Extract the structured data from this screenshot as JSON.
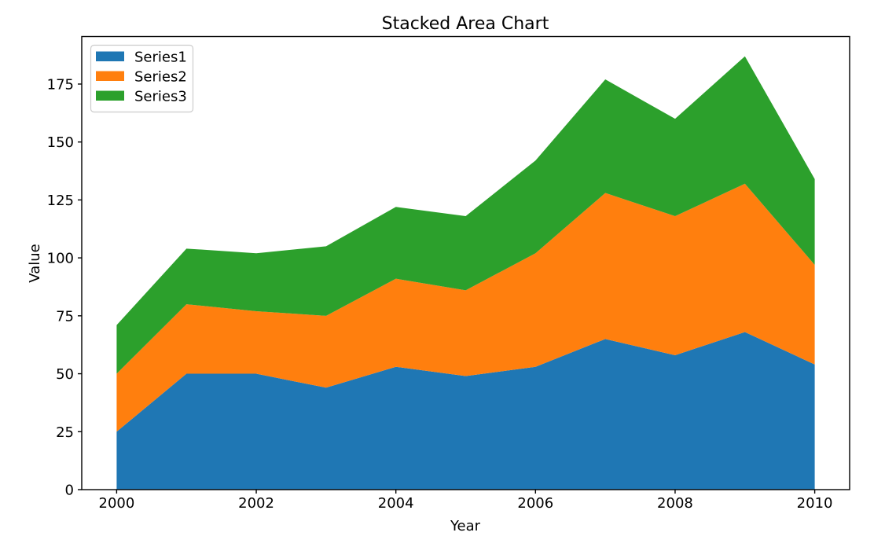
{
  "chart_data": {
    "type": "area",
    "stacked": true,
    "title": "Stacked Area Chart",
    "xlabel": "Year",
    "ylabel": "Value",
    "x": [
      2000,
      2001,
      2002,
      2003,
      2004,
      2005,
      2006,
      2007,
      2008,
      2009,
      2010
    ],
    "series": [
      {
        "name": "Series1",
        "color": "#1f77b4",
        "values": [
          25,
          50,
          50,
          44,
          53,
          49,
          53,
          65,
          58,
          68,
          54
        ]
      },
      {
        "name": "Series2",
        "color": "#ff7f0e",
        "values": [
          25,
          30,
          27,
          31,
          38,
          37,
          49,
          63,
          60,
          64,
          43
        ]
      },
      {
        "name": "Series3",
        "color": "#2ca02c",
        "values": [
          21,
          24,
          25,
          30,
          31,
          32,
          40,
          49,
          42,
          55,
          37
        ]
      }
    ],
    "stacked_totals": {
      "series1_top": [
        25,
        50,
        50,
        44,
        53,
        49,
        53,
        65,
        58,
        68,
        54
      ],
      "series2_top": [
        50,
        80,
        77,
        75,
        91,
        86,
        102,
        128,
        118,
        132,
        97
      ],
      "series3_top": [
        71,
        104,
        102,
        105,
        122,
        118,
        142,
        177,
        160,
        187,
        134
      ]
    },
    "xlim": [
      1999.5,
      2010.5
    ],
    "ylim": [
      0,
      195.5
    ],
    "xticks": [
      2000,
      2002,
      2004,
      2006,
      2008,
      2010
    ],
    "yticks": [
      0,
      25,
      50,
      75,
      100,
      125,
      150,
      175
    ],
    "grid": false,
    "legend": {
      "location": "upper left",
      "entries": [
        "Series1",
        "Series2",
        "Series3"
      ]
    },
    "colors": {
      "background": "#ffffff",
      "axes": "#000000",
      "legend_border": "#cccccc",
      "legend_fill": "#ffffff"
    }
  }
}
